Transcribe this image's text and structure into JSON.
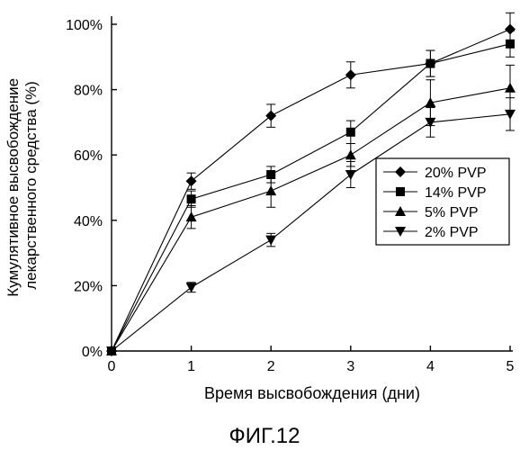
{
  "chart_data": {
    "type": "line",
    "title": "",
    "xlabel": "Время высвобождения (дни)",
    "ylabel_lines": [
      "Кумулятивное высвобождение",
      "лекарственного средства (%)"
    ],
    "x": [
      0,
      1,
      2,
      3,
      4,
      5
    ],
    "x_ticks": [
      "0",
      "1",
      "2",
      "3",
      "4",
      "5"
    ],
    "y_ticks": [
      "0%",
      "20%",
      "40%",
      "60%",
      "80%",
      "100%"
    ],
    "y_tick_values": [
      0,
      20,
      40,
      60,
      80,
      100
    ],
    "xlim": [
      0,
      5
    ],
    "ylim": [
      0,
      100
    ],
    "grid": false,
    "legend_position": "right-middle",
    "series": [
      {
        "name": "20% PVP",
        "marker": "diamond",
        "values": [
          0,
          52,
          72,
          84.5,
          88,
          98.5
        ],
        "errors": [
          0,
          2.5,
          3.5,
          4,
          4,
          5
        ]
      },
      {
        "name": "14% PVP",
        "marker": "square",
        "values": [
          0,
          46.5,
          54,
          67,
          88,
          94
        ],
        "errors": [
          0,
          2.5,
          2.5,
          3.5,
          4,
          4
        ]
      },
      {
        "name": "5% PVP",
        "marker": "triangle-up",
        "values": [
          0,
          41,
          49,
          60,
          76,
          80.5
        ],
        "errors": [
          0,
          3.5,
          5,
          3.5,
          7,
          7
        ]
      },
      {
        "name": "2% PVP",
        "marker": "triangle-down",
        "values": [
          0,
          19.5,
          34,
          54,
          70,
          72.5
        ],
        "errors": [
          0,
          1.5,
          2,
          4,
          4.5,
          5
        ]
      }
    ]
  },
  "figure_caption": "ФИГ.12"
}
